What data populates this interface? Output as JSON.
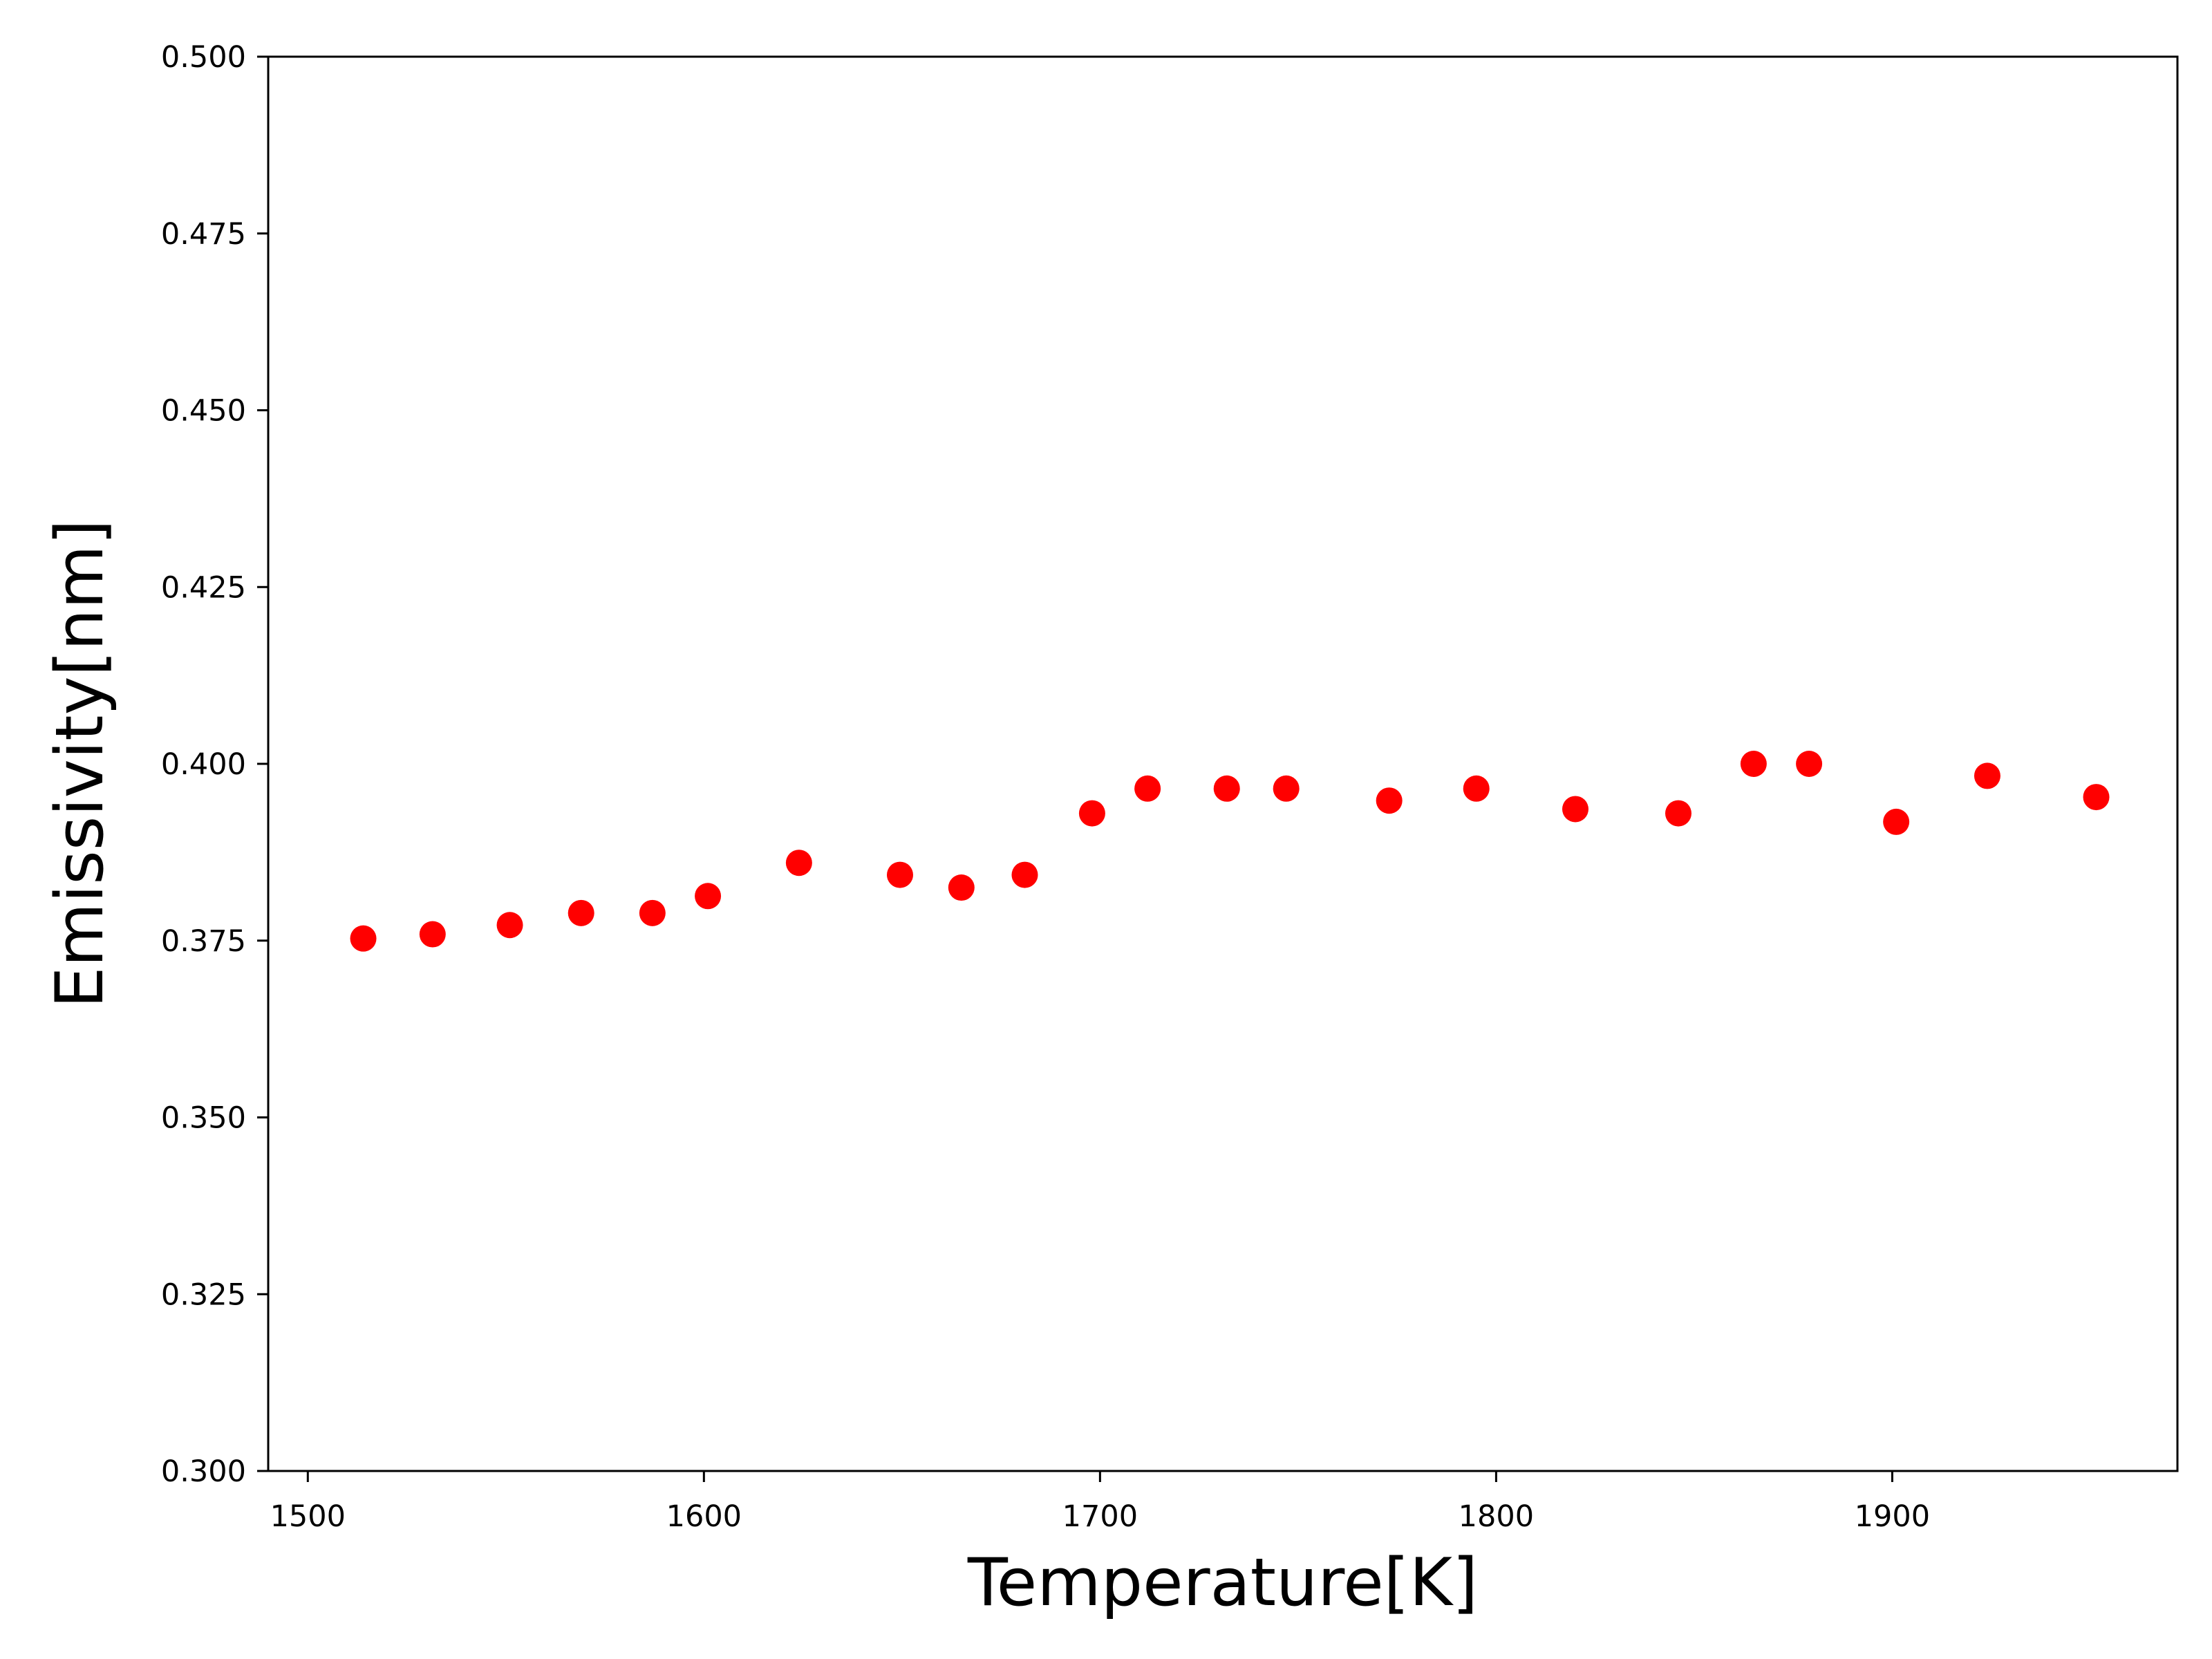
{
  "chart_data": {
    "type": "scatter",
    "title": "",
    "xlabel": "Temperature[K]",
    "ylabel": "Emissivity[nm]",
    "xlim": [
      1490,
      1972
    ],
    "ylim": [
      0.3,
      0.5
    ],
    "xticks": [
      1500,
      1600,
      1700,
      1800,
      1900
    ],
    "yticks": [
      0.3,
      0.325,
      0.35,
      0.375,
      0.4,
      0.425,
      0.45,
      0.475,
      0.5
    ],
    "xtick_labels": [
      "1500",
      "1600",
      "1700",
      "1800",
      "1900"
    ],
    "ytick_labels": [
      "0.300",
      "0.325",
      "0.350",
      "0.375",
      "0.400",
      "0.425",
      "0.450",
      "0.475",
      "0.500"
    ],
    "grid": false,
    "legend": false,
    "marker_color": "#ff0000",
    "series": [
      {
        "x": [
          1514,
          1531.5,
          1551,
          1569,
          1587,
          1601,
          1624,
          1649.5,
          1665,
          1681,
          1698,
          1712,
          1732,
          1747,
          1773,
          1795,
          1820,
          1846,
          1865,
          1879,
          1901,
          1924,
          1951.5
        ],
        "y": [
          0.3753,
          0.3759,
          0.3772,
          0.3789,
          0.3789,
          0.3813,
          0.386,
          0.3843,
          0.3825,
          0.3843,
          0.393,
          0.3965,
          0.3965,
          0.3965,
          0.3948,
          0.3965,
          0.3936,
          0.393,
          0.4,
          0.4,
          0.3918,
          0.3983,
          0.3953
        ]
      }
    ]
  }
}
